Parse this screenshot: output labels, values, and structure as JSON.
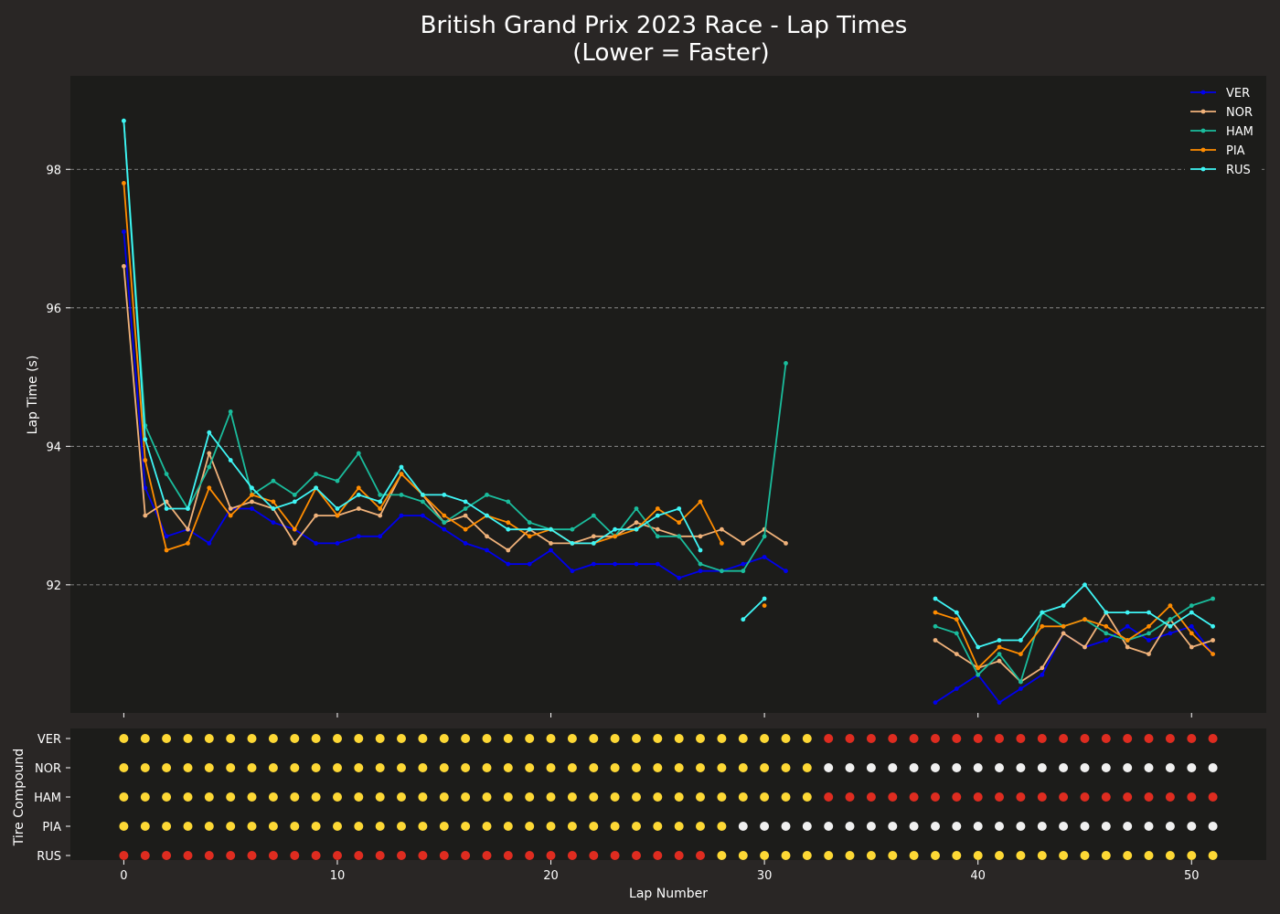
{
  "chart_data": [
    {
      "type": "line",
      "title": "British Grand Prix 2023 Race - Lap Times",
      "subtitle": "(Lower = Faster)",
      "xlabel": "",
      "ylabel": "Lap Time (s)",
      "xlim": [
        -2.5,
        53.5
      ],
      "ylim": [
        90.15,
        99.35
      ],
      "yticks": [
        92,
        94,
        96,
        98
      ],
      "grid": "horizontal dashed",
      "legend_position": "top-right",
      "series": [
        {
          "name": "VER",
          "color": "#0000ee",
          "points": [
            [
              0,
              97.1
            ],
            [
              1,
              93.4
            ],
            [
              2,
              92.7
            ],
            [
              3,
              92.8
            ],
            [
              4,
              92.6
            ],
            [
              5,
              93.1
            ],
            [
              6,
              93.1
            ],
            [
              7,
              92.9
            ],
            [
              8,
              92.8
            ],
            [
              9,
              92.6
            ],
            [
              10,
              92.6
            ],
            [
              11,
              92.7
            ],
            [
              12,
              92.7
            ],
            [
              13,
              93.0
            ],
            [
              14,
              93.0
            ],
            [
              15,
              92.8
            ],
            [
              16,
              92.6
            ],
            [
              17,
              92.5
            ],
            [
              18,
              92.3
            ],
            [
              19,
              92.3
            ],
            [
              20,
              92.5
            ],
            [
              21,
              92.2
            ],
            [
              22,
              92.3
            ],
            [
              23,
              92.3
            ],
            [
              24,
              92.3
            ],
            [
              25,
              92.3
            ],
            [
              26,
              92.1
            ],
            [
              27,
              92.2
            ],
            [
              28,
              92.2
            ],
            [
              29,
              92.3
            ],
            [
              30,
              92.4
            ],
            [
              31,
              92.2
            ],
            [
              null,
              null
            ],
            [
              38,
              90.3
            ],
            [
              39,
              90.5
            ],
            [
              40,
              90.7
            ],
            [
              41,
              90.3
            ],
            [
              42,
              90.5
            ],
            [
              43,
              90.7
            ],
            [
              44,
              91.3
            ],
            [
              45,
              91.1
            ],
            [
              46,
              91.2
            ],
            [
              47,
              91.4
            ],
            [
              48,
              91.2
            ],
            [
              49,
              91.3
            ],
            [
              50,
              91.4
            ],
            [
              51,
              91.0
            ]
          ]
        },
        {
          "name": "NOR",
          "color": "#f0b27a",
          "points": [
            [
              0,
              96.6
            ],
            [
              1,
              93.0
            ],
            [
              2,
              93.2
            ],
            [
              3,
              92.8
            ],
            [
              4,
              93.9
            ],
            [
              5,
              93.1
            ],
            [
              6,
              93.2
            ],
            [
              7,
              93.1
            ],
            [
              8,
              92.6
            ],
            [
              9,
              93.0
            ],
            [
              10,
              93.0
            ],
            [
              11,
              93.1
            ],
            [
              12,
              93.0
            ],
            [
              13,
              93.6
            ],
            [
              14,
              93.3
            ],
            [
              15,
              92.9
            ],
            [
              16,
              93.0
            ],
            [
              17,
              92.7
            ],
            [
              18,
              92.5
            ],
            [
              19,
              92.8
            ],
            [
              20,
              92.6
            ],
            [
              21,
              92.6
            ],
            [
              22,
              92.7
            ],
            [
              23,
              92.7
            ],
            [
              24,
              92.9
            ],
            [
              25,
              92.8
            ],
            [
              26,
              92.7
            ],
            [
              27,
              92.7
            ],
            [
              28,
              92.8
            ],
            [
              29,
              92.6
            ],
            [
              30,
              92.8
            ],
            [
              31,
              92.6
            ],
            [
              null,
              null
            ],
            [
              38,
              91.2
            ],
            [
              39,
              91.0
            ],
            [
              40,
              90.8
            ],
            [
              41,
              90.9
            ],
            [
              42,
              90.6
            ],
            [
              43,
              90.8
            ],
            [
              44,
              91.3
            ],
            [
              45,
              91.1
            ],
            [
              46,
              91.6
            ],
            [
              47,
              91.1
            ],
            [
              48,
              91.0
            ],
            [
              49,
              91.5
            ],
            [
              50,
              91.1
            ],
            [
              51,
              91.2
            ]
          ]
        },
        {
          "name": "HAM",
          "color": "#1abc9c",
          "points": [
            [
              0,
              98.7
            ],
            [
              1,
              94.3
            ],
            [
              2,
              93.6
            ],
            [
              3,
              93.1
            ],
            [
              4,
              93.7
            ],
            [
              5,
              94.5
            ],
            [
              6,
              93.3
            ],
            [
              7,
              93.5
            ],
            [
              8,
              93.3
            ],
            [
              9,
              93.6
            ],
            [
              10,
              93.5
            ],
            [
              11,
              93.9
            ],
            [
              12,
              93.3
            ],
            [
              13,
              93.3
            ],
            [
              14,
              93.2
            ],
            [
              15,
              92.9
            ],
            [
              16,
              93.1
            ],
            [
              17,
              93.3
            ],
            [
              18,
              93.2
            ],
            [
              19,
              92.9
            ],
            [
              20,
              92.8
            ],
            [
              21,
              92.8
            ],
            [
              22,
              93.0
            ],
            [
              23,
              92.7
            ],
            [
              24,
              93.1
            ],
            [
              25,
              92.7
            ],
            [
              26,
              92.7
            ],
            [
              27,
              92.3
            ],
            [
              28,
              92.2
            ],
            [
              29,
              92.2
            ],
            [
              30,
              92.7
            ],
            [
              31,
              95.2
            ],
            [
              null,
              null
            ],
            [
              38,
              91.4
            ],
            [
              39,
              91.3
            ],
            [
              40,
              90.7
            ],
            [
              41,
              91.0
            ],
            [
              42,
              90.6
            ],
            [
              43,
              91.6
            ],
            [
              44,
              91.4
            ],
            [
              45,
              91.5
            ],
            [
              46,
              91.3
            ],
            [
              47,
              91.2
            ],
            [
              48,
              91.3
            ],
            [
              49,
              91.5
            ],
            [
              50,
              91.7
            ],
            [
              51,
              91.8
            ]
          ]
        },
        {
          "name": "PIA",
          "color": "#ff8c00",
          "points": [
            [
              0,
              97.8
            ],
            [
              1,
              93.8
            ],
            [
              2,
              92.5
            ],
            [
              3,
              92.6
            ],
            [
              4,
              93.4
            ],
            [
              5,
              93.0
            ],
            [
              6,
              93.3
            ],
            [
              7,
              93.2
            ],
            [
              8,
              92.8
            ],
            [
              9,
              93.4
            ],
            [
              10,
              93.0
            ],
            [
              11,
              93.4
            ],
            [
              12,
              93.1
            ],
            [
              13,
              93.6
            ],
            [
              14,
              93.3
            ],
            [
              15,
              93.0
            ],
            [
              16,
              92.8
            ],
            [
              17,
              93.0
            ],
            [
              18,
              92.9
            ],
            [
              19,
              92.7
            ],
            [
              20,
              92.8
            ],
            [
              21,
              92.6
            ],
            [
              22,
              92.6
            ],
            [
              23,
              92.7
            ],
            [
              24,
              92.8
            ],
            [
              25,
              93.1
            ],
            [
              26,
              92.9
            ],
            [
              27,
              93.2
            ],
            [
              28,
              92.6
            ],
            [
              null,
              null
            ],
            [
              30,
              91.7
            ],
            [
              null,
              null
            ],
            [
              38,
              91.6
            ],
            [
              39,
              91.5
            ],
            [
              40,
              90.8
            ],
            [
              41,
              91.1
            ],
            [
              42,
              91.0
            ],
            [
              43,
              91.4
            ],
            [
              44,
              91.4
            ],
            [
              45,
              91.5
            ],
            [
              46,
              91.4
            ],
            [
              47,
              91.2
            ],
            [
              48,
              91.4
            ],
            [
              49,
              91.7
            ],
            [
              50,
              91.3
            ],
            [
              51,
              91.0
            ]
          ]
        },
        {
          "name": "RUS",
          "color": "#3ff5f5",
          "points": [
            [
              0,
              98.7
            ],
            [
              1,
              94.1
            ],
            [
              2,
              93.1
            ],
            [
              3,
              93.1
            ],
            [
              4,
              94.2
            ],
            [
              5,
              93.8
            ],
            [
              6,
              93.4
            ],
            [
              7,
              93.1
            ],
            [
              8,
              93.2
            ],
            [
              9,
              93.4
            ],
            [
              10,
              93.1
            ],
            [
              11,
              93.3
            ],
            [
              12,
              93.2
            ],
            [
              13,
              93.7
            ],
            [
              14,
              93.3
            ],
            [
              15,
              93.3
            ],
            [
              16,
              93.2
            ],
            [
              17,
              93.0
            ],
            [
              18,
              92.8
            ],
            [
              19,
              92.8
            ],
            [
              20,
              92.8
            ],
            [
              21,
              92.6
            ],
            [
              22,
              92.6
            ],
            [
              23,
              92.8
            ],
            [
              24,
              92.8
            ],
            [
              25,
              93.0
            ],
            [
              26,
              93.1
            ],
            [
              27,
              92.5
            ],
            [
              null,
              null
            ],
            [
              29,
              91.5
            ],
            [
              30,
              91.8
            ],
            [
              null,
              null
            ],
            [
              38,
              91.8
            ],
            [
              39,
              91.6
            ],
            [
              40,
              91.1
            ],
            [
              41,
              91.2
            ],
            [
              42,
              91.2
            ],
            [
              43,
              91.6
            ],
            [
              44,
              91.7
            ],
            [
              45,
              92.0
            ],
            [
              46,
              91.6
            ],
            [
              47,
              91.6
            ],
            [
              48,
              91.6
            ],
            [
              49,
              91.4
            ],
            [
              50,
              91.6
            ],
            [
              51,
              91.4
            ]
          ]
        }
      ]
    },
    {
      "type": "scatter",
      "xlabel": "Lap Number",
      "ylabel": "Tire Compound",
      "xlim": [
        -2.5,
        53.5
      ],
      "xticks": [
        0,
        10,
        20,
        30,
        40,
        50
      ],
      "drivers": [
        "VER",
        "NOR",
        "HAM",
        "PIA",
        "RUS"
      ],
      "compound_colors": {
        "S": "#de2c20",
        "M": "#fdd835",
        "H": "#f0f0f0"
      },
      "stints": {
        "VER": [
          {
            "compound": "M",
            "from": 0,
            "to": 32
          },
          {
            "compound": "S",
            "from": 33,
            "to": 51
          }
        ],
        "NOR": [
          {
            "compound": "M",
            "from": 0,
            "to": 32
          },
          {
            "compound": "H",
            "from": 33,
            "to": 51
          }
        ],
        "HAM": [
          {
            "compound": "M",
            "from": 0,
            "to": 32
          },
          {
            "compound": "S",
            "from": 33,
            "to": 51
          }
        ],
        "PIA": [
          {
            "compound": "M",
            "from": 0,
            "to": 28
          },
          {
            "compound": "H",
            "from": 29,
            "to": 51
          }
        ],
        "RUS": [
          {
            "compound": "S",
            "from": 0,
            "to": 27
          },
          {
            "compound": "M",
            "from": 28,
            "to": 51
          }
        ]
      }
    }
  ]
}
